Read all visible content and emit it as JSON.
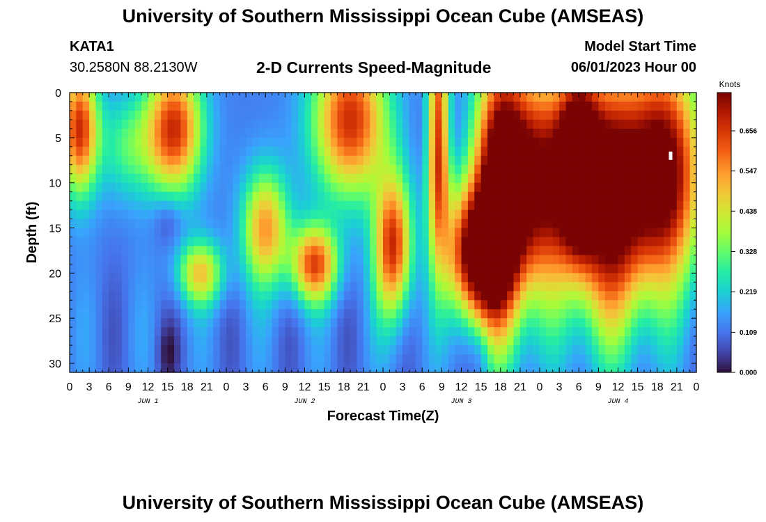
{
  "header": {
    "title": "University of Southern Mississippi Ocean Cube (AMSEAS)",
    "station_id": "KATA1",
    "coords": "30.2580N  88.2130W",
    "subtitle": "2-D Currents Speed-Magnitude",
    "model_start_label": "Model Start Time",
    "model_start_value": "06/01/2023 Hour 00"
  },
  "footer": {
    "title_repeat": "University of Southern Mississippi Ocean Cube (AMSEAS)"
  },
  "chart_data": {
    "type": "heatmap",
    "title": "2-D Currents Speed-Magnitude",
    "xlabel": "Forecast Time(Z)",
    "ylabel": "Depth (ft)",
    "x_range_hours": [
      0,
      96
    ],
    "y_range_ft": [
      0,
      31
    ],
    "x_tick_labels": [
      "0",
      "3",
      "6",
      "9",
      "12",
      "15",
      "18",
      "21",
      "0",
      "3",
      "6",
      "9",
      "12",
      "15",
      "18",
      "21",
      "0",
      "3",
      "6",
      "9",
      "12",
      "15",
      "18",
      "21",
      "0",
      "3",
      "6",
      "9",
      "12",
      "15",
      "18",
      "21",
      "0"
    ],
    "day_labels": [
      "JUN 1",
      "JUN 2",
      "JUN 3",
      "JUN 4"
    ],
    "y_ticks": [
      0,
      5,
      10,
      15,
      20,
      25,
      30
    ],
    "colorbar": {
      "unit": "Knots",
      "min": 0.0,
      "max": 0.76,
      "ticks": [
        "0.000",
        "0.109",
        "0.219",
        "0.328",
        "0.438",
        "0.547",
        "0.656"
      ]
    },
    "colormap_stops": [
      "#30123b",
      "#4145ab",
      "#4675ed",
      "#39a2fc",
      "#1bcfd4",
      "#24eca6",
      "#61fc6c",
      "#a4fc3b",
      "#d1e834",
      "#f3c63a",
      "#fe9b2d",
      "#f36315",
      "#d93806",
      "#b11901",
      "#7a0403"
    ],
    "speed_description": "Speed (knots) at depth vs forecast hour, approximated from the figure",
    "max_marker": {
      "hour": 92,
      "depth_ft": 7
    }
  }
}
